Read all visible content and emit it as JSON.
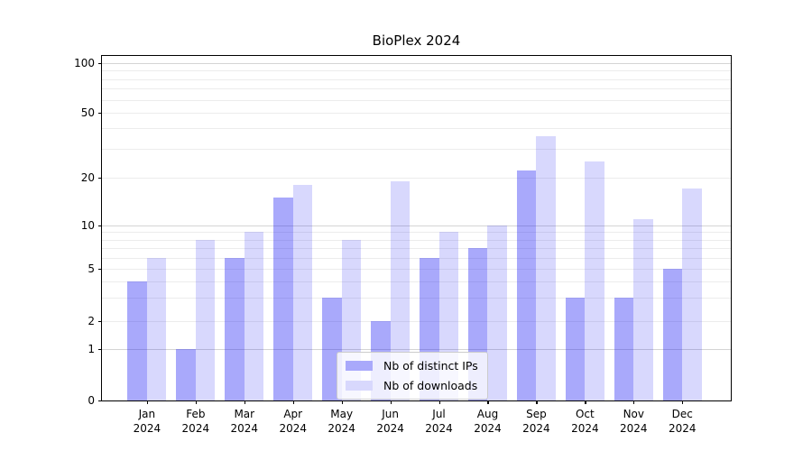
{
  "title": "BioPlex 2024",
  "chart_data": {
    "type": "bar",
    "title": "BioPlex 2024",
    "x": [
      "Jan",
      "Feb",
      "Mar",
      "Apr",
      "May",
      "Jun",
      "Jul",
      "Aug",
      "Sep",
      "Oct",
      "Nov",
      "Dec"
    ],
    "x_year": "2024",
    "series": [
      {
        "name": "Nb of distinct IPs",
        "values": [
          4,
          1,
          6,
          15,
          3,
          2,
          6,
          7,
          22,
          3,
          3,
          5
        ],
        "color": "rgba(40,40,245,0.40)",
        "legend_color": "#a9a9fb"
      },
      {
        "name": "Nb of downloads",
        "values": [
          6,
          8,
          9,
          18,
          8,
          19,
          9,
          10,
          36,
          25,
          11,
          17
        ],
        "color": "rgba(40,40,245,0.18)",
        "legend_color": "#d8d8fd"
      }
    ],
    "yticks": [
      0,
      1,
      2,
      5,
      10,
      20,
      50,
      100
    ],
    "ylim": [
      0,
      110
    ],
    "yscale": "symlog-like",
    "grid": {
      "minor_values": [
        2,
        3,
        4,
        5,
        6,
        7,
        8,
        9,
        20,
        30,
        40,
        50,
        60,
        70,
        80,
        90
      ],
      "major_values": [
        1,
        10,
        100
      ],
      "minor_color": "#ececec",
      "major_color": "#d4d4d4"
    },
    "legend_position": "lower-center",
    "axis_color": "#000000"
  }
}
